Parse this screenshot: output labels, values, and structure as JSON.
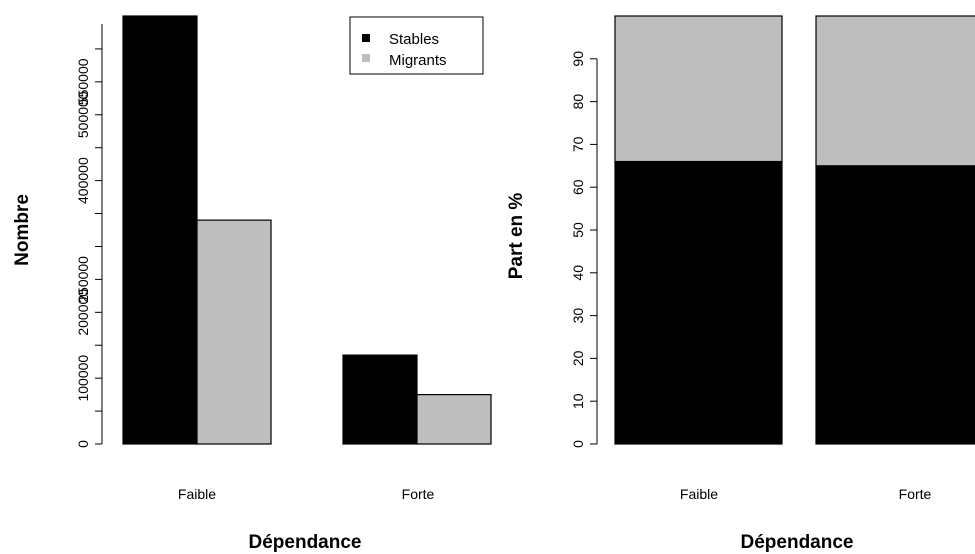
{
  "chart_data": [
    {
      "type": "bar",
      "layout": "grouped",
      "categories": [
        "Faible",
        "Forte"
      ],
      "series": [
        {
          "name": "Stables",
          "values": [
            650000,
            135000
          ]
        },
        {
          "name": "Migrants",
          "values": [
            340000,
            75000
          ]
        }
      ],
      "xlabel": "Dépendance",
      "ylabel": "Nombre",
      "ylim": [
        0,
        650000
      ],
      "yticks": [
        0,
        50000,
        100000,
        150000,
        200000,
        250000,
        300000,
        350000,
        400000,
        450000,
        500000,
        550000,
        600000
      ],
      "ytick_labels": [
        "0",
        "",
        "100000",
        "",
        "200000",
        "250000",
        "",
        "",
        "400000",
        "",
        "500000",
        "550000",
        ""
      ],
      "legend": {
        "placement": "top-right",
        "entries": [
          "Stables",
          "Migrants"
        ]
      },
      "colors": {
        "Stables": "#000000",
        "Migrants": "#bebebe"
      },
      "grid": false
    },
    {
      "type": "bar",
      "layout": "stacked",
      "categories": [
        "Faible",
        "Forte"
      ],
      "series": [
        {
          "name": "Stables",
          "values": [
            66,
            65
          ]
        },
        {
          "name": "Migrants",
          "values": [
            34,
            35
          ]
        }
      ],
      "xlabel": "Dépendance",
      "ylabel": "Part en %",
      "ylim": [
        0,
        100
      ],
      "yticks": [
        0,
        10,
        20,
        30,
        40,
        50,
        60,
        70,
        80,
        90
      ],
      "ytick_labels": [
        "0",
        "10",
        "20",
        "30",
        "40",
        "50",
        "60",
        "70",
        "80",
        "90"
      ],
      "colors": {
        "Stables": "#000000",
        "Migrants": "#bebebe"
      },
      "grid": false
    }
  ]
}
